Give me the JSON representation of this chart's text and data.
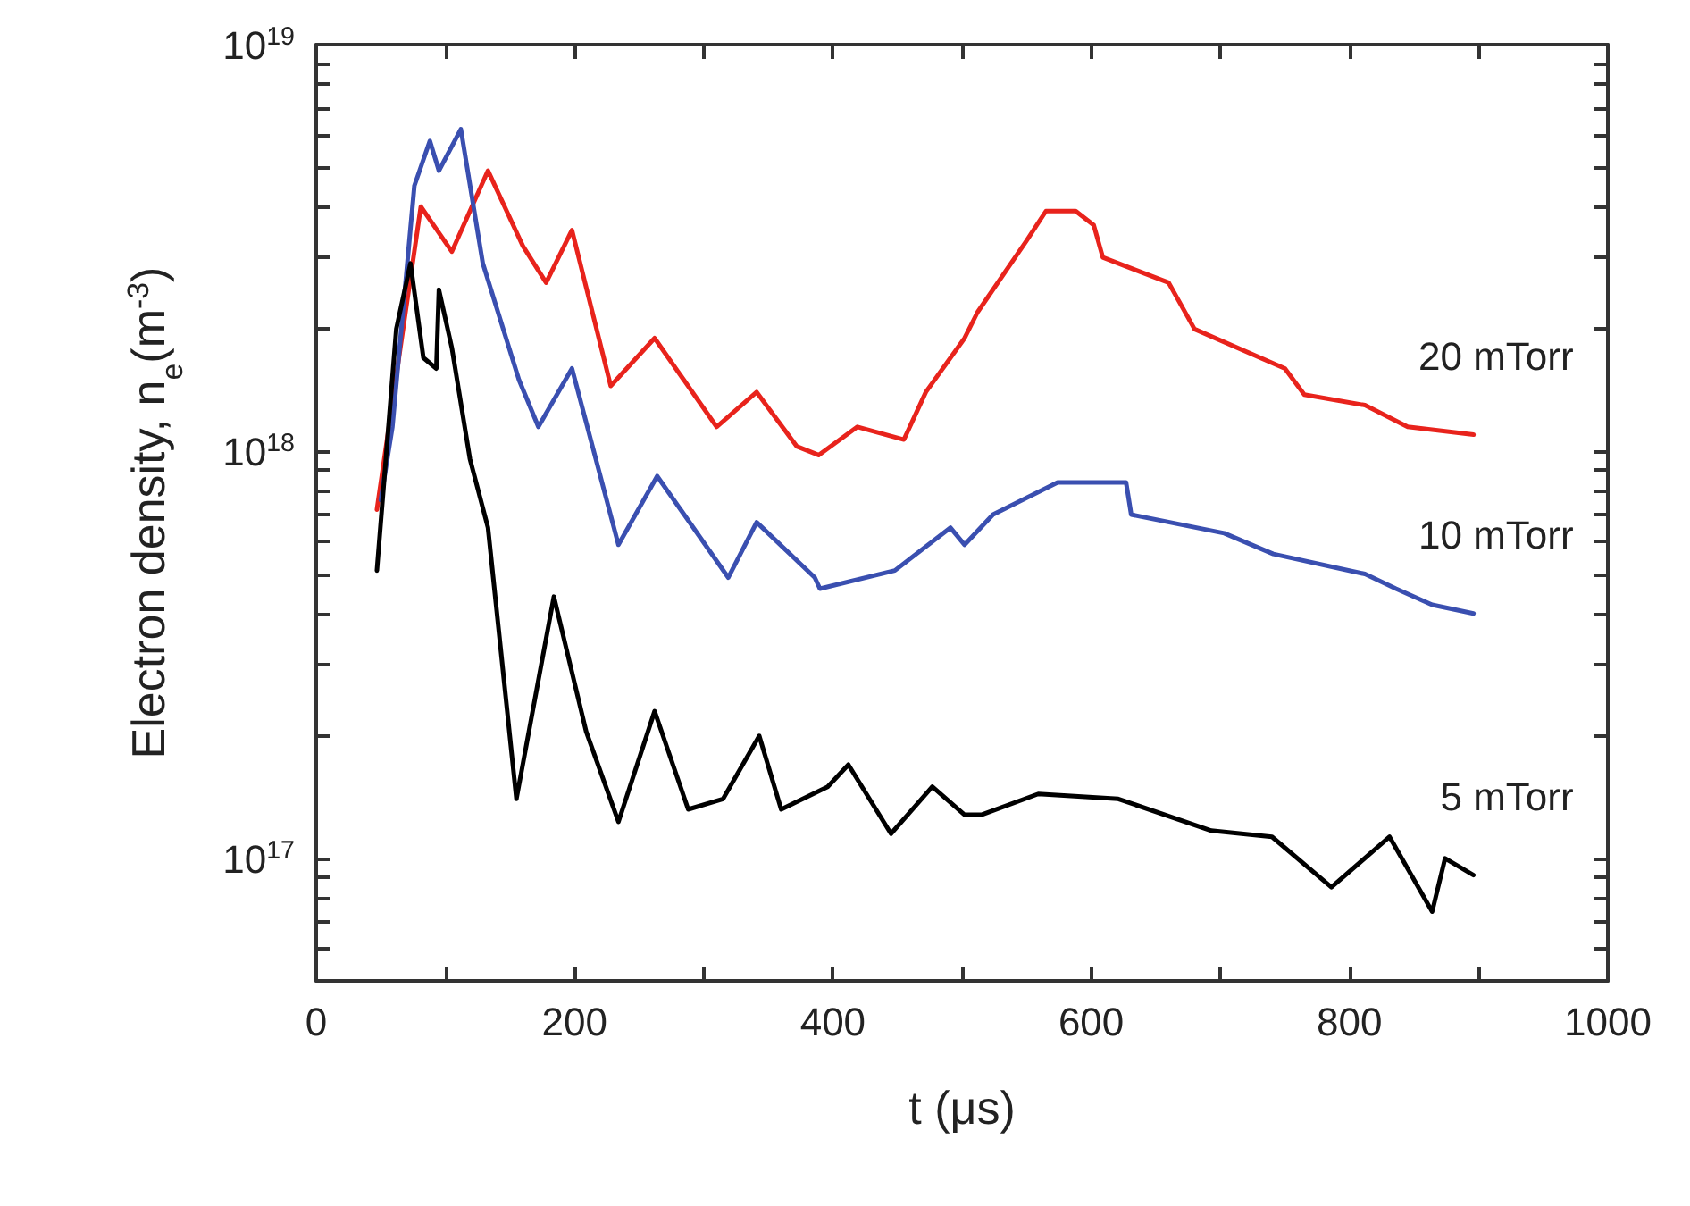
{
  "chart_data": {
    "type": "line",
    "xlabel": "t (μs)",
    "ylabel": "Electron density, n$_{e}$(m$^{-3}$)",
    "log": "y",
    "grid": false,
    "legend": false,
    "marker": "none",
    "line_style": "solid",
    "xlim": [
      0,
      1000
    ],
    "ylim": [
      5e+16,
      1e+19
    ],
    "xticks": [
      0,
      {
        "value": 100,
        "label": null
      },
      200,
      {
        "value": 300,
        "label": null
      },
      400,
      {
        "value": 500,
        "label": null
      },
      600,
      {
        "value": 700,
        "label": null
      },
      800,
      {
        "value": 900,
        "label": null
      },
      1000
    ],
    "yticks": [
      {
        "value": 6e+16,
        "label": null
      },
      {
        "value": 7e+16,
        "label": null
      },
      {
        "value": 8e+16,
        "label": null
      },
      {
        "value": 9e+16,
        "label": null
      },
      {
        "value": 1e+17,
        "label": "10$^{17}$"
      },
      {
        "value": 2e+17,
        "label": null
      },
      {
        "value": 3e+17,
        "label": null
      },
      {
        "value": 4e+17,
        "label": null
      },
      {
        "value": 5e+17,
        "label": null
      },
      {
        "value": 6e+17,
        "label": null
      },
      {
        "value": 7e+17,
        "label": null
      },
      {
        "value": 8e+17,
        "label": null
      },
      {
        "value": 9e+17,
        "label": null
      },
      {
        "value": 1e+18,
        "label": "10$^{18}$"
      },
      {
        "value": 2e+18,
        "label": null
      },
      {
        "value": 3e+18,
        "label": null
      },
      {
        "value": 4e+18,
        "label": null
      },
      {
        "value": 5e+18,
        "label": null
      },
      {
        "value": 6e+18,
        "label": null
      },
      {
        "value": 7e+18,
        "label": null
      },
      {
        "value": 8e+18,
        "label": null
      },
      {
        "value": 9e+18,
        "label": null
      },
      {
        "value": 1e+19,
        "label": "10$^{19}$"
      }
    ],
    "series": [
      {
        "name": "20 mTorr",
        "color": "#e8231c",
        "x": [
          47,
          81,
          105,
          133,
          160,
          178,
          198,
          228,
          262,
          310,
          341,
          372,
          389,
          419,
          455,
          472,
          502,
          512,
          550,
          565,
          588,
          602,
          609,
          660,
          680,
          750,
          765,
          812,
          845,
          896
        ],
        "values": [
          7.2e+17,
          4e+18,
          3.1e+18,
          4.9e+18,
          3.2e+18,
          2.6e+18,
          3.5e+18,
          1.45e+18,
          1.9e+18,
          1.15e+18,
          1.4e+18,
          1.03e+18,
          9.8e+17,
          1.15e+18,
          1.07e+18,
          1.4e+18,
          1.9e+18,
          2.2e+18,
          3.3e+18,
          3.9e+18,
          3.9e+18,
          3.6e+18,
          3e+18,
          2.6e+18,
          2e+18,
          1.6e+18,
          1.38e+18,
          1.3e+18,
          1.15e+18,
          1.1e+18
        ]
      },
      {
        "name": "10 mTorr",
        "color": "#3a4fb0",
        "x": [
          50,
          59,
          76,
          88,
          95,
          112,
          129,
          157,
          172,
          198,
          234,
          264,
          319,
          341,
          386,
          390,
          448,
          491,
          502,
          524,
          574,
          627,
          631,
          703,
          741,
          812,
          836,
          864,
          896
        ],
        "values": [
          7.6e+17,
          1.15e+18,
          4.5e+18,
          5.8e+18,
          4.9e+18,
          6.2e+18,
          2.9e+18,
          1.5e+18,
          1.15e+18,
          1.6e+18,
          5.9e+17,
          8.7e+17,
          4.9e+17,
          6.7e+17,
          4.9e+17,
          4.6e+17,
          5.1e+17,
          6.5e+17,
          5.9e+17,
          7e+17,
          8.4e+17,
          8.4e+17,
          7e+17,
          6.3e+17,
          5.6e+17,
          5e+17,
          4.6e+17,
          4.2e+17,
          4e+17
        ]
      },
      {
        "name": "5 mTorr",
        "color": "#000000",
        "x": [
          47,
          50,
          62,
          73,
          83,
          93,
          95,
          105,
          119,
          133,
          155,
          184,
          209,
          234,
          262,
          288,
          315,
          343,
          360,
          396,
          412,
          445,
          477,
          502,
          515,
          559,
          621,
          693,
          740,
          786,
          831,
          864,
          874,
          896
        ],
        "values": [
          5.1e+17,
          6.7e+17,
          2e+18,
          2.9e+18,
          1.7e+18,
          1.6e+18,
          2.5e+18,
          1.8e+18,
          9.6e+17,
          6.5e+17,
          1.4e+17,
          4.4e+17,
          2.05e+17,
          1.23e+17,
          2.3e+17,
          1.32e+17,
          1.4e+17,
          2e+17,
          1.32e+17,
          1.5e+17,
          1.7e+17,
          1.15e+17,
          1.5e+17,
          1.28e+17,
          1.28e+17,
          1.44e+17,
          1.4e+17,
          1.17e+17,
          1.13e+17,
          8.5e+16,
          1.13e+17,
          7.4e+16,
          1e+17,
          9.1e+16
        ]
      }
    ]
  }
}
